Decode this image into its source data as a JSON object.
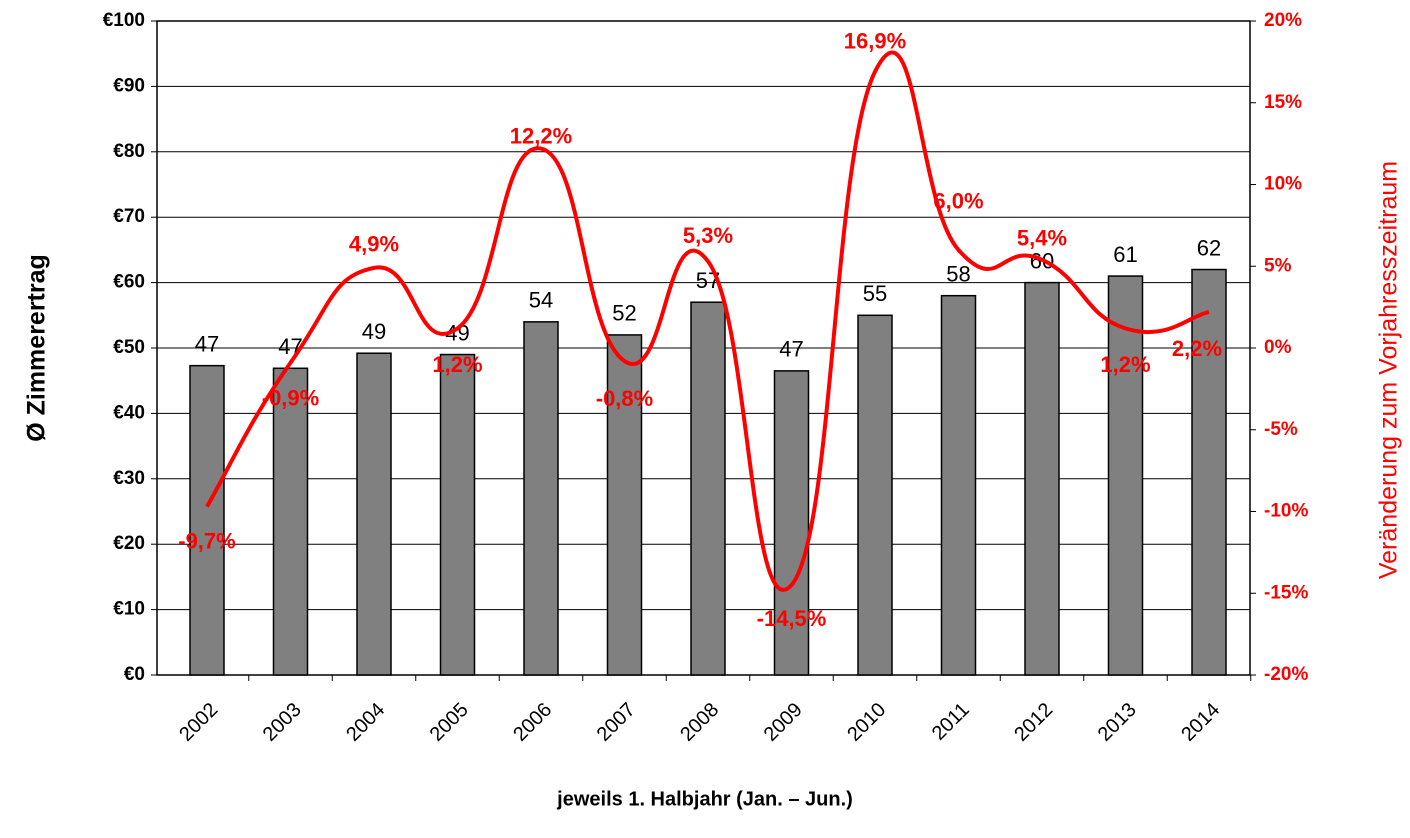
{
  "chart_data": {
    "type": "bar_line",
    "y_label": "Ø Zimmerertrag",
    "y2_label": "Veränderung zum Vorjahresszeitraum",
    "x_label": "jeweils 1. Halbjahr (Jan. – Jun.)",
    "categories": [
      "2002",
      "2003",
      "2004",
      "2005",
      "2006",
      "2007",
      "2008",
      "2009",
      "2010",
      "2011",
      "2012",
      "2013",
      "2014"
    ],
    "series": [
      {
        "type": "bar",
        "color": "#808080",
        "values": [
          47.3,
          46.9,
          49.2,
          49.0,
          54.0,
          52.0,
          57.0,
          46.5,
          55.0,
          58.0,
          60.0,
          61.0,
          62.0
        ],
        "value_labels": [
          "47",
          "47",
          "49",
          "49",
          "54",
          "52",
          "57",
          "47",
          "55",
          "58",
          "60",
          "61",
          "62"
        ]
      },
      {
        "type": "line",
        "axis": "y2",
        "color": "#ff0000",
        "values": [
          -9.7,
          -0.9,
          4.9,
          1.2,
          12.2,
          -0.8,
          5.3,
          -14.5,
          16.9,
          6.0,
          5.4,
          1.2,
          2.2
        ],
        "value_labels": [
          "-9,7%",
          "-0,9%",
          "4,9%",
          "1,2%",
          "12,2%",
          "-0,8%",
          "5,3%",
          "-14,5%",
          "16,9%",
          "6,0%",
          "5,4%",
          "1,2%",
          "2,2%"
        ]
      }
    ],
    "ylim": [
      0,
      100
    ],
    "yticks": [
      {
        "value": 0,
        "label": "€0"
      },
      {
        "value": 10,
        "label": "€10"
      },
      {
        "value": 20,
        "label": "€20"
      },
      {
        "value": 30,
        "label": "€30"
      },
      {
        "value": 40,
        "label": "€40"
      },
      {
        "value": 50,
        "label": "€50"
      },
      {
        "value": 60,
        "label": "€60"
      },
      {
        "value": 70,
        "label": "€70"
      },
      {
        "value": 80,
        "label": "€80"
      },
      {
        "value": 90,
        "label": "€90"
      },
      {
        "value": 100,
        "label": "€100"
      }
    ],
    "y2lim": [
      -20,
      20
    ],
    "y2ticks": [
      {
        "value": -20,
        "label": "-20%"
      },
      {
        "value": -15,
        "label": "-15%"
      },
      {
        "value": -10,
        "label": "-10%"
      },
      {
        "value": -5,
        "label": "-5%"
      },
      {
        "value": 0,
        "label": "0%"
      },
      {
        "value": 5,
        "label": "5%"
      },
      {
        "value": 10,
        "label": "10%"
      },
      {
        "value": 15,
        "label": "15%"
      },
      {
        "value": 20,
        "label": "20%"
      }
    ],
    "grid": true
  }
}
